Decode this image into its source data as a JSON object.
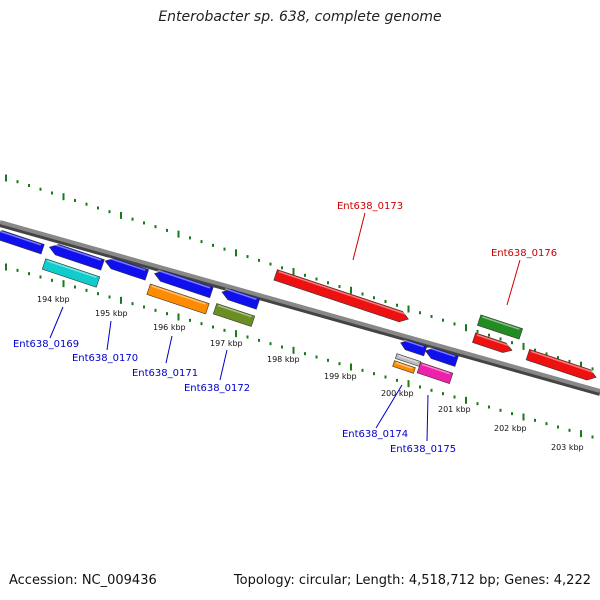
{
  "title": "Enterobacter sp. 638, complete genome",
  "footer": {
    "accession": "Accession: NC_009436",
    "summary": "Topology: circular; Length: 4,518,712 bp; Genes: 4,222"
  },
  "colors": {
    "backbone": "#888888",
    "tick": "#1a7a1a",
    "forward_label": "#cc0000",
    "reverse_label": "#0000cc",
    "kbp_label": "#111111"
  },
  "kbp_labels": [
    "194 kbp",
    "195 kbp",
    "196 kbp",
    "197 kbp",
    "198 kbp",
    "199 kbp",
    "200 kbp",
    "201 kbp",
    "202 kbp",
    "203 kbp"
  ],
  "features": [
    {
      "strand": "reverse",
      "color": "#1010ee",
      "label": ""
    },
    {
      "strand": "reverse",
      "color": "#1010ee",
      "label": ""
    },
    {
      "strand": "reverse",
      "color": "#1010ee",
      "label": ""
    },
    {
      "strand": "reverse",
      "color": "#1010ee",
      "label": ""
    },
    {
      "strand": "reverse",
      "color": "#1010ee",
      "label": ""
    },
    {
      "strand": "forward",
      "color": "#ee1111",
      "label": "Ent638_0173"
    },
    {
      "strand": "reverse",
      "color": "#1010ee",
      "label": ""
    },
    {
      "strand": "reverse",
      "color": "#1010ee",
      "label": ""
    },
    {
      "strand": "forward",
      "color": "#ee1111",
      "label": ""
    },
    {
      "strand": "forward",
      "color": "#ee1111",
      "label": ""
    },
    {
      "strand": "none",
      "color": "#11cccc",
      "label": "Ent638_0169"
    },
    {
      "strand": "none",
      "color": "#ff8c00",
      "label": "Ent638_0171"
    },
    {
      "strand": "none",
      "color": "#6b8e23",
      "label": "Ent638_0172"
    },
    {
      "strand": "none",
      "color": "#228b22",
      "label": "Ent638_0176"
    },
    {
      "strand": "none",
      "color": "#bbbbbb",
      "label": ""
    },
    {
      "strand": "none",
      "color": "#ff8c00",
      "label": ""
    },
    {
      "strand": "none",
      "color": "#ee22aa",
      "label": "Ent638_0175"
    }
  ],
  "gene_labels": [
    {
      "text": "Ent638_0173",
      "strand": "forward"
    },
    {
      "text": "Ent638_0176",
      "strand": "forward"
    },
    {
      "text": "Ent638_0169",
      "strand": "reverse"
    },
    {
      "text": "Ent638_0170",
      "strand": "reverse"
    },
    {
      "text": "Ent638_0171",
      "strand": "reverse"
    },
    {
      "text": "Ent638_0172",
      "strand": "reverse"
    },
    {
      "text": "Ent638_0174",
      "strand": "reverse"
    },
    {
      "text": "Ent638_0175",
      "strand": "reverse"
    }
  ]
}
